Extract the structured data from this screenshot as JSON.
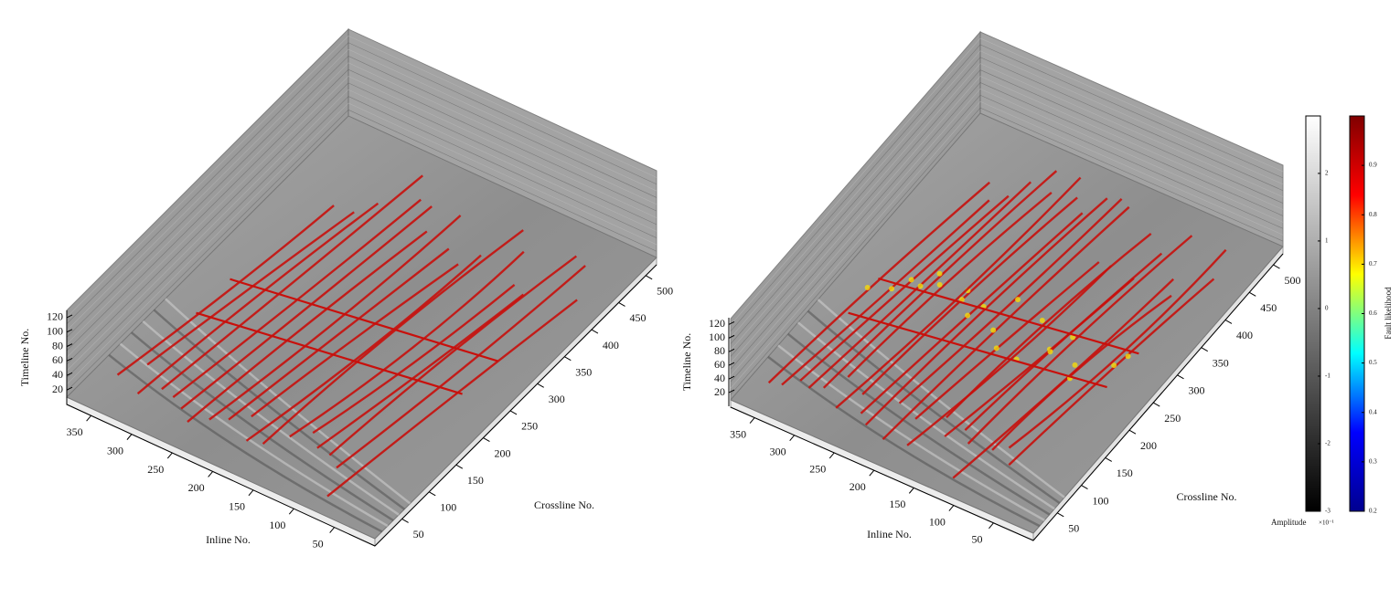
{
  "chart_data": [
    {
      "type": "volume3d",
      "xlabel": "Inline No.",
      "xlim": [
        0,
        380
      ],
      "xticks": [
        50,
        100,
        150,
        200,
        250,
        300,
        350
      ],
      "ylabel": "Crossline No.",
      "ylim": [
        0,
        520
      ],
      "yticks": [
        50,
        100,
        150,
        200,
        250,
        300,
        350,
        400,
        450,
        500
      ],
      "zlabel": "Timeline No.",
      "zlim": [
        0,
        130
      ],
      "zticks": [
        20,
        40,
        60,
        80,
        100,
        120
      ]
    },
    {
      "type": "volume3d",
      "xlabel": "Inline No.",
      "xlim": [
        0,
        380
      ],
      "xticks": [
        50,
        100,
        150,
        200,
        250,
        300,
        350
      ],
      "ylabel": "Crossline No.",
      "ylim": [
        0,
        520
      ],
      "yticks": [
        50,
        100,
        150,
        200,
        250,
        300,
        350,
        400,
        450,
        500
      ],
      "zlabel": "Timeline No.",
      "zlim": [
        0,
        130
      ],
      "zticks": [
        20,
        40,
        60,
        80,
        100,
        120
      ]
    },
    {
      "type": "colorbar",
      "label": "Amplitude",
      "exponent_label": "×10⁻¹",
      "colors": [
        "#000000",
        "#ffffff"
      ],
      "ylim": [
        -3,
        2.85
      ],
      "yticks": [
        -3,
        -2,
        -1,
        0,
        1,
        2
      ]
    },
    {
      "type": "colorbar",
      "label": "Fault likelihood",
      "colors": [
        "#00008f",
        "#0000ff",
        "#00ffff",
        "#ffff00",
        "#ff0000",
        "#800000"
      ],
      "ylim": [
        0.2,
        1.0
      ],
      "yticks": [
        0.2,
        0.3,
        0.4,
        0.5,
        0.6,
        0.7,
        0.8,
        0.9
      ]
    }
  ]
}
